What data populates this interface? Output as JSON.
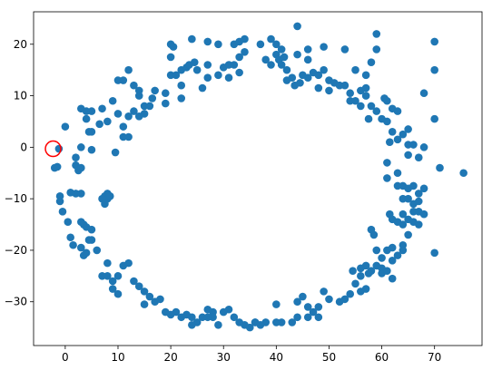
{
  "chart_data": {
    "type": "scatter",
    "xlim": [
      -6,
      79
    ],
    "ylim": [
      -38.5,
      26.3
    ],
    "xticks": [
      0,
      10,
      20,
      30,
      40,
      50,
      60,
      70
    ],
    "yticks": [
      {
        "value": -30,
        "label": "−30"
      },
      {
        "value": -20,
        "label": "−20"
      },
      {
        "value": -10,
        "label": "−10"
      },
      0,
      10,
      20
    ],
    "series": [
      {
        "color": "#1f77b4",
        "marker": "filled",
        "x": [
          -1.2,
          -2,
          -1.5,
          -1,
          -1,
          -0.5,
          0.5,
          1,
          1.5,
          2,
          2,
          2.5,
          3,
          3,
          3,
          3.5,
          3,
          3.5,
          4,
          4.5,
          5,
          5,
          6,
          7,
          8,
          9,
          9,
          10,
          10,
          7.5,
          8,
          8,
          7,
          7.5,
          8.5,
          4,
          0,
          1,
          2,
          3,
          4.5,
          5,
          5,
          3,
          4,
          4,
          5,
          7,
          8,
          6.5,
          9,
          10,
          11,
          11,
          9.5,
          10,
          11,
          12,
          13,
          14,
          14,
          15,
          15,
          14,
          16,
          16.5,
          17,
          13,
          12,
          12,
          19,
          19,
          20,
          20,
          20.5,
          20,
          21,
          22,
          22,
          22,
          23,
          23.5,
          24,
          24.5,
          25,
          26,
          27,
          27,
          27,
          29,
          29,
          30,
          31,
          31,
          32,
          32,
          33,
          33,
          33,
          34,
          34,
          37,
          38,
          39,
          39,
          40,
          40,
          40.5,
          41,
          41,
          41.5,
          42,
          42,
          43,
          43.5,
          44,
          44,
          44.5,
          45,
          46,
          46,
          46,
          47,
          48,
          48,
          49,
          49,
          50,
          50,
          51,
          52,
          53,
          53,
          54,
          54,
          55,
          55,
          56,
          56,
          57,
          57,
          57,
          57.5,
          58,
          58,
          59,
          59,
          59,
          60,
          60.5,
          61,
          61,
          62,
          61.5,
          62,
          63,
          63,
          64,
          65,
          65,
          65,
          66,
          67,
          68,
          68,
          70,
          70,
          70,
          71,
          75.5,
          61,
          61,
          63,
          63,
          64,
          64,
          65,
          65,
          66,
          66,
          67,
          67,
          68,
          61.5,
          62,
          63,
          64,
          64,
          65,
          66,
          66,
          67,
          67,
          68,
          65,
          64,
          64,
          63,
          62,
          61,
          62,
          60,
          59,
          58,
          58.5,
          59,
          58,
          57,
          56,
          56,
          57.5,
          60,
          60,
          61,
          62,
          70,
          57,
          56,
          55,
          54,
          53,
          52,
          54.5,
          50,
          49,
          48,
          48,
          47,
          46,
          46,
          45,
          44,
          44,
          43,
          41,
          40,
          40,
          38,
          37,
          36,
          35,
          34,
          33,
          32,
          31,
          30,
          29,
          28,
          28,
          27,
          26,
          25,
          24,
          23,
          22,
          21,
          20,
          19,
          18,
          17,
          16,
          15,
          14,
          13,
          15,
          12,
          11,
          8,
          24,
          27,
          36
        ],
        "y": [
          -0.3,
          -4,
          -3.8,
          -9.5,
          -10.5,
          -12.5,
          -14.5,
          -17.5,
          -19,
          -2,
          -3.5,
          -4.5,
          -4,
          -9,
          -14.5,
          -15,
          -19.5,
          -21,
          -15.5,
          -18,
          -18,
          -16,
          -20,
          -25,
          -25,
          -26,
          -27.5,
          -25,
          -28.5,
          -9.5,
          -9,
          -10,
          -10,
          -11,
          -9.5,
          -20.5,
          4,
          -8.8,
          -9,
          0,
          3,
          -0.5,
          3,
          7.5,
          7,
          5.5,
          7,
          7.5,
          5,
          4.5,
          9,
          6.5,
          4,
          2,
          -1,
          13,
          13,
          15,
          12,
          11,
          10,
          8,
          6.5,
          6,
          8,
          9.5,
          11,
          7,
          6,
          2,
          10.5,
          8.5,
          14,
          20,
          19.5,
          17.5,
          14,
          15,
          12,
          9.5,
          15.5,
          16,
          21,
          16.5,
          15,
          11.5,
          20.5,
          16,
          13.5,
          20,
          14,
          15.5,
          13.5,
          16,
          20,
          16,
          20.5,
          17.5,
          14.5,
          21,
          18.5,
          20,
          17,
          16,
          21,
          18,
          20,
          17,
          16,
          19,
          17.5,
          15,
          13,
          13.5,
          12,
          23.5,
          18,
          12.5,
          14,
          17,
          19,
          13.5,
          14.5,
          14,
          11.5,
          15,
          19.5,
          11,
          13,
          12.5,
          12,
          19,
          12,
          10.5,
          9,
          15,
          9,
          8,
          11,
          10,
          14,
          11.5,
          5.5,
          8,
          16.5,
          22,
          19,
          7,
          5.5,
          9.5,
          9,
          5,
          3,
          1,
          7.5,
          7,
          1.5,
          2.5,
          0.5,
          -1.5,
          3.5,
          0.5,
          -2,
          0,
          10.5,
          20.5,
          15,
          5.5,
          -4,
          -5,
          -3,
          -6,
          -5,
          -7.5,
          -7.5,
          -10,
          -8,
          -10,
          -7.5,
          -11,
          -9,
          -10.5,
          -8,
          -13,
          -14,
          -14.5,
          -15,
          -13,
          -14,
          -12.5,
          -14.5,
          -12.5,
          -15,
          -13,
          -17,
          -19,
          -20,
          -21,
          -19.5,
          -20,
          -22,
          -21.5,
          -20,
          -16,
          -17,
          -23,
          -24,
          -23,
          -23.5,
          -25,
          -24.5,
          -23.5,
          -24.5,
          -24,
          -25.5,
          -20.5,
          -27.5,
          -28,
          -26.5,
          -28.5,
          -29.5,
          -30,
          -24,
          -29.5,
          -28,
          -31,
          -33,
          -32,
          -31,
          -33,
          -29,
          -30,
          -33,
          -34,
          -34,
          -34,
          -30.5,
          -34,
          -34.5,
          -34,
          -35,
          -34.5,
          -34,
          -33,
          -31.5,
          -32,
          -34.5,
          -32,
          -33,
          -31.5,
          -33,
          -34,
          -33,
          -32.5,
          -33,
          -32,
          -32.5,
          -32,
          -29.5,
          -30,
          -29,
          -28,
          -27,
          -26,
          -30.5,
          -22.5,
          -23,
          -22.5,
          -34.5,
          -33,
          -34
        ]
      },
      {
        "color": "#ff0000",
        "marker": "hollow",
        "x": [
          -2.3
        ],
        "y": [
          -0.3
        ]
      }
    ]
  }
}
